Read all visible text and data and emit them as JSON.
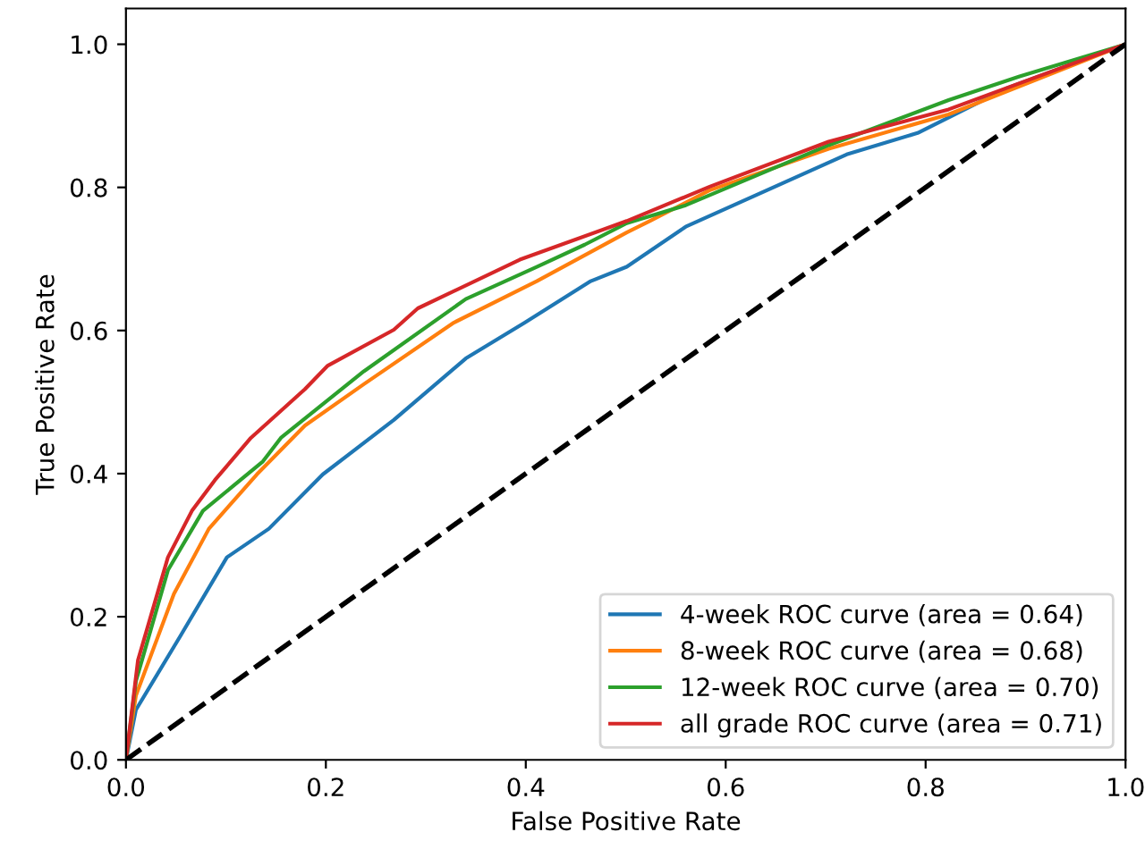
{
  "chart_data": {
    "type": "line",
    "xlabel": "False Positive Rate",
    "ylabel": "True Positive Rate",
    "xlim": [
      0.0,
      1.0
    ],
    "ylim": [
      0.0,
      1.05
    ],
    "xticks": [
      {
        "value": 0,
        "label": "0.0"
      },
      0.2,
      0.4,
      0.6,
      0.8,
      {
        "value": 1,
        "label": "1.0"
      }
    ],
    "yticks": [
      {
        "value": 0,
        "label": "0.0"
      },
      0.2,
      0.4,
      0.6,
      0.8,
      {
        "value": 1,
        "label": "1.0"
      }
    ],
    "grid": false,
    "legend": "bottom right",
    "series": [
      {
        "name": "4-week ROC curve (area = 0.64)",
        "color": "#1f77b4",
        "x": [
          0,
          0.01,
          0.054,
          0.101,
          0.143,
          0.197,
          0.268,
          0.34,
          0.399,
          0.465,
          0.501,
          0.56,
          0.721,
          0.792,
          0.882,
          1
        ],
        "values": [
          0,
          0.07,
          0.172,
          0.283,
          0.323,
          0.399,
          0.475,
          0.561,
          0.611,
          0.669,
          0.689,
          0.745,
          0.846,
          0.876,
          0.939,
          1
        ]
      },
      {
        "name": "8-week ROC curve (area = 0.68)",
        "color": "#ff7f0e",
        "x": [
          0,
          0.01,
          0.048,
          0.083,
          0.131,
          0.179,
          0.238,
          0.328,
          0.411,
          0.501,
          0.524,
          0.584,
          0.703,
          0.823,
          1
        ],
        "values": [
          0,
          0.09,
          0.232,
          0.323,
          0.399,
          0.467,
          0.525,
          0.611,
          0.669,
          0.737,
          0.753,
          0.796,
          0.854,
          0.902,
          1
        ]
      },
      {
        "name": "12-week ROC curve (area = 0.70)",
        "color": "#2ca02c",
        "x": [
          0,
          0.01,
          0.042,
          0.077,
          0.137,
          0.155,
          0.238,
          0.34,
          0.411,
          0.459,
          0.501,
          0.56,
          0.703,
          0.823,
          0.894,
          1
        ],
        "values": [
          0,
          0.11,
          0.265,
          0.348,
          0.417,
          0.45,
          0.543,
          0.644,
          0.689,
          0.72,
          0.75,
          0.775,
          0.859,
          0.922,
          0.955,
          1
        ]
      },
      {
        "name": "all grade ROC curve (area = 0.71)",
        "color": "#d62728",
        "x": [
          0,
          0.012,
          0.042,
          0.066,
          0.089,
          0.125,
          0.179,
          0.202,
          0.268,
          0.292,
          0.394,
          0.501,
          0.584,
          0.703,
          0.823,
          1
        ],
        "values": [
          0,
          0.139,
          0.283,
          0.348,
          0.391,
          0.45,
          0.518,
          0.551,
          0.601,
          0.631,
          0.699,
          0.753,
          0.801,
          0.864,
          0.909,
          1
        ]
      },
      {
        "color": "#000000",
        "line_style": "dashed",
        "x": [
          0,
          1
        ],
        "values": [
          0,
          1
        ]
      }
    ]
  }
}
